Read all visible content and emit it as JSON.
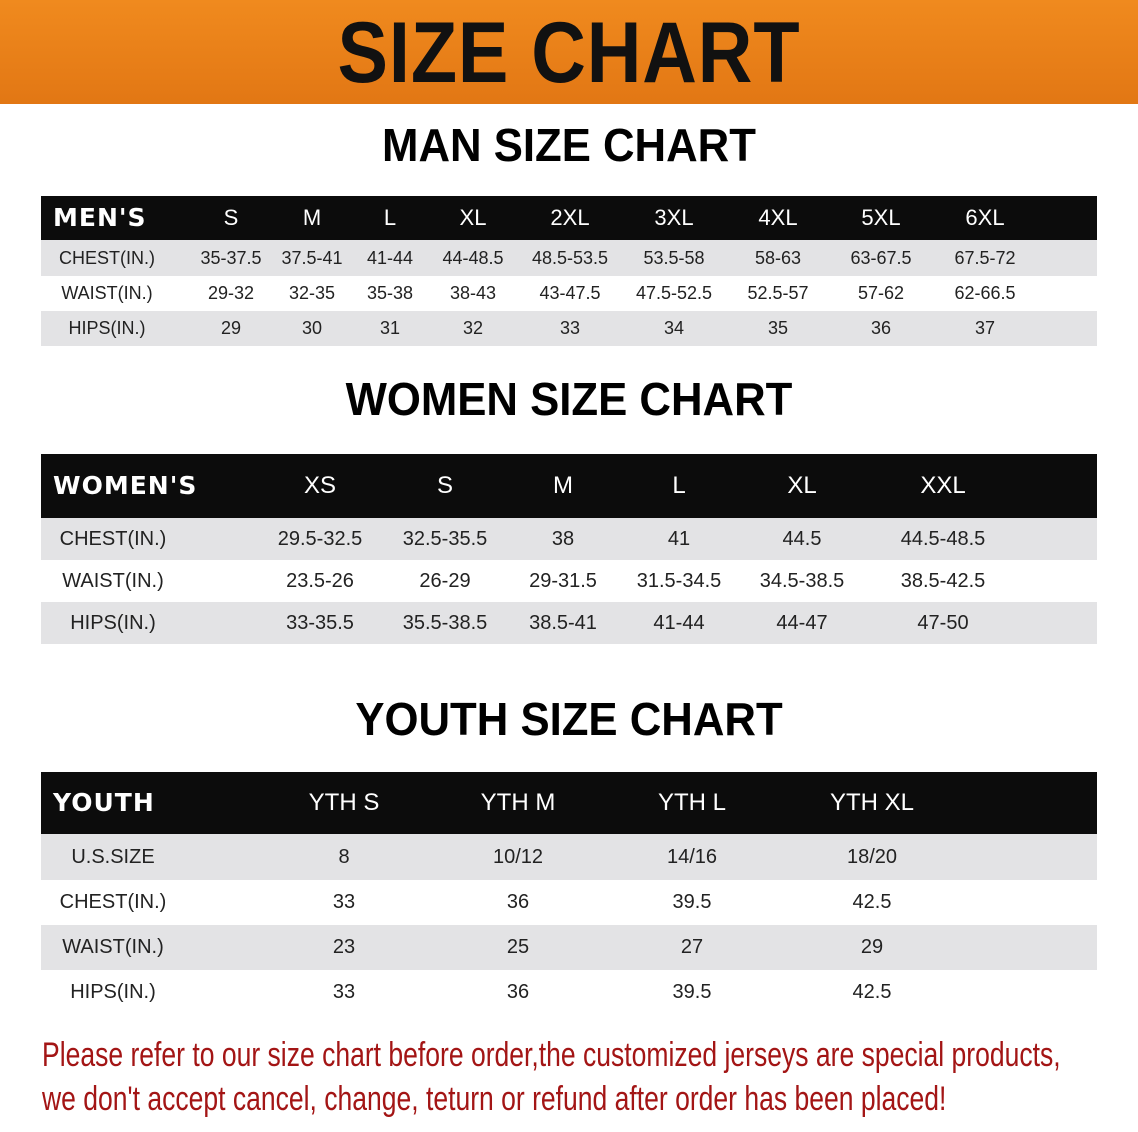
{
  "banner_title": "SIZE CHART",
  "men": {
    "title": "MAN SIZE CHART",
    "header_label": "MEN'S",
    "sizes": [
      "S",
      "M",
      "L",
      "XL",
      "2XL",
      "3XL",
      "4XL",
      "5XL",
      "6XL"
    ],
    "rows": [
      {
        "label": "CHEST(IN.)",
        "values": [
          "35-37.5",
          "37.5-41",
          "41-44",
          "44-48.5",
          "48.5-53.5",
          "53.5-58",
          "58-63",
          "63-67.5",
          "67.5-72"
        ]
      },
      {
        "label": "WAIST(IN.)",
        "values": [
          "29-32",
          "32-35",
          "35-38",
          "38-43",
          "43-47.5",
          "47.5-52.5",
          "52.5-57",
          "57-62",
          "62-66.5"
        ]
      },
      {
        "label": "HIPS(IN.)",
        "values": [
          "29",
          "30",
          "31",
          "32",
          "33",
          "34",
          "35",
          "36",
          "37"
        ]
      }
    ]
  },
  "women": {
    "title": "WOMEN SIZE CHART",
    "header_label": "WOMEN'S",
    "sizes": [
      "XS",
      "S",
      "M",
      "L",
      "XL",
      "XXL"
    ],
    "rows": [
      {
        "label": "CHEST(IN.)",
        "values": [
          "29.5-32.5",
          "32.5-35.5",
          "38",
          "41",
          "44.5",
          "44.5-48.5"
        ]
      },
      {
        "label": "WAIST(IN.)",
        "values": [
          "23.5-26",
          "26-29",
          "29-31.5",
          "31.5-34.5",
          "34.5-38.5",
          "38.5-42.5"
        ]
      },
      {
        "label": "HIPS(IN.)",
        "values": [
          "33-35.5",
          "35.5-38.5",
          "38.5-41",
          "41-44",
          "44-47",
          "47-50"
        ]
      }
    ]
  },
  "youth": {
    "title": "YOUTH SIZE CHART",
    "header_label": "YOUTH",
    "sizes": [
      "YTH S",
      "YTH M",
      "YTH L",
      "YTH XL"
    ],
    "rows": [
      {
        "label": "U.S.SIZE",
        "values": [
          "8",
          "10/12",
          "14/16",
          "18/20"
        ]
      },
      {
        "label": "CHEST(IN.)",
        "values": [
          "33",
          "36",
          "39.5",
          "42.5"
        ]
      },
      {
        "label": "WAIST(IN.)",
        "values": [
          "23",
          "25",
          "27",
          "29"
        ]
      },
      {
        "label": "HIPS(IN.)",
        "values": [
          "33",
          "36",
          "39.5",
          "42.5"
        ]
      }
    ]
  },
  "notice": {
    "line1": "Please refer to our size chart before order,the customized jerseys are special products,",
    "line2": "we don't accept cancel, change, teturn or refund after order has been placed!"
  },
  "colors": {
    "banner": "#e8801c",
    "header_row": "#0c0c0c",
    "stripe": "#e3e3e5",
    "notice": "#a31515"
  }
}
